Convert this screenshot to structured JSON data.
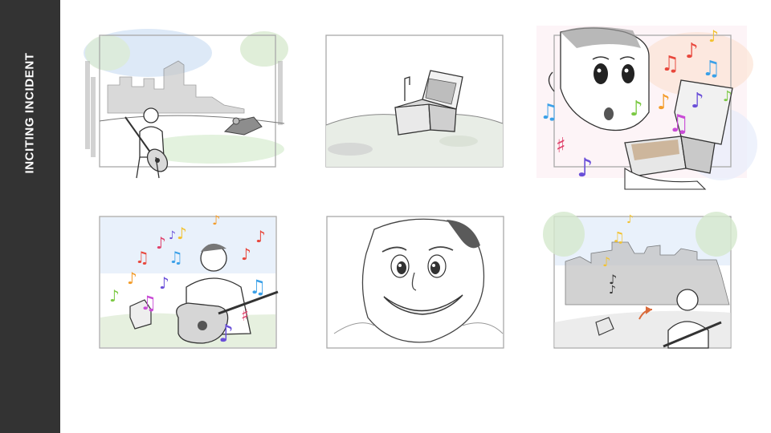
{
  "slide": {
    "section_title": "INCITING INCIDENT",
    "sidebar_color": "#333333"
  },
  "panels": [
    {
      "name": "storyboard-panel-1",
      "depicts": "park-guitarist-finds-music-box"
    },
    {
      "name": "storyboard-panel-2",
      "depicts": "music-box-on-ground"
    },
    {
      "name": "storyboard-panel-3",
      "depicts": "man-amazed-by-open-music-box"
    },
    {
      "name": "storyboard-panel-4",
      "depicts": "guitarist-playing-with-notes"
    },
    {
      "name": "storyboard-panel-5",
      "depicts": "man-smiling-closeup"
    },
    {
      "name": "storyboard-panel-6",
      "depicts": "notes-floating-to-city"
    }
  ],
  "note_colors": [
    "#e8473c",
    "#f39c2a",
    "#f2c230",
    "#7bc943",
    "#3aa0e8",
    "#6a4fd8",
    "#c94bd6",
    "#e0406a"
  ]
}
